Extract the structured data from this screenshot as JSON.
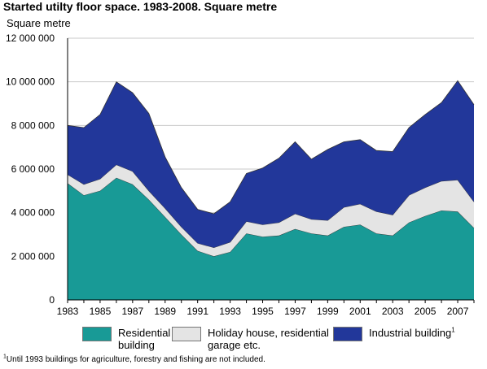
{
  "title": "Started utilty floor space. 1983-2008. Square metre",
  "footnote": {
    "marker": "1",
    "text": "Until 1993 buildings for agriculture, forestry and fishing are not included."
  },
  "chart_data": {
    "type": "area",
    "stacked": true,
    "ylabel": "Square metre",
    "ylim": [
      0,
      12000000
    ],
    "yticks": [
      0,
      2000000,
      4000000,
      6000000,
      8000000,
      10000000,
      12000000
    ],
    "ytick_labels": [
      "0",
      "2 000 000",
      "4 000 000",
      "6 000 000",
      "8 000 000",
      "10 000 000",
      "12 000 000"
    ],
    "xlim": [
      1983,
      2008
    ],
    "xticks": [
      1983,
      1985,
      1987,
      1989,
      1991,
      1993,
      1995,
      1997,
      1999,
      2001,
      2003,
      2005,
      2007
    ],
    "grid": "horizontal",
    "legend_position": "bottom",
    "x": [
      1983,
      1984,
      1985,
      1986,
      1987,
      1988,
      1989,
      1990,
      1991,
      1992,
      1993,
      1994,
      1995,
      1996,
      1997,
      1998,
      1999,
      2000,
      2001,
      2002,
      2003,
      2004,
      2005,
      2006,
      2007,
      2008
    ],
    "series": [
      {
        "name": "Residential building",
        "color": "#189a96",
        "values": [
          5350000,
          4800000,
          5000000,
          5600000,
          5300000,
          4600000,
          3800000,
          3000000,
          2250000,
          2000000,
          2200000,
          3050000,
          2900000,
          2950000,
          3250000,
          3050000,
          2950000,
          3350000,
          3450000,
          3050000,
          2950000,
          3550000,
          3850000,
          4100000,
          4050000,
          3300000
        ]
      },
      {
        "name": "Holiday house, residential garage etc.",
        "color": "#e4e4e4",
        "values": [
          400000,
          500000,
          550000,
          600000,
          600000,
          400000,
          400000,
          350000,
          350000,
          400000,
          450000,
          550000,
          550000,
          600000,
          700000,
          650000,
          700000,
          900000,
          950000,
          1000000,
          950000,
          1250000,
          1300000,
          1350000,
          1450000,
          1200000
        ]
      },
      {
        "name": "Industrial building",
        "name_marker": "1",
        "color": "#22379a",
        "values": [
          2250000,
          2600000,
          2950000,
          3800000,
          3600000,
          3550000,
          2350000,
          1800000,
          1550000,
          1550000,
          1850000,
          2200000,
          2600000,
          2950000,
          3300000,
          2750000,
          3250000,
          3000000,
          2950000,
          2800000,
          2900000,
          3100000,
          3350000,
          3600000,
          4550000,
          4450000
        ]
      }
    ]
  }
}
